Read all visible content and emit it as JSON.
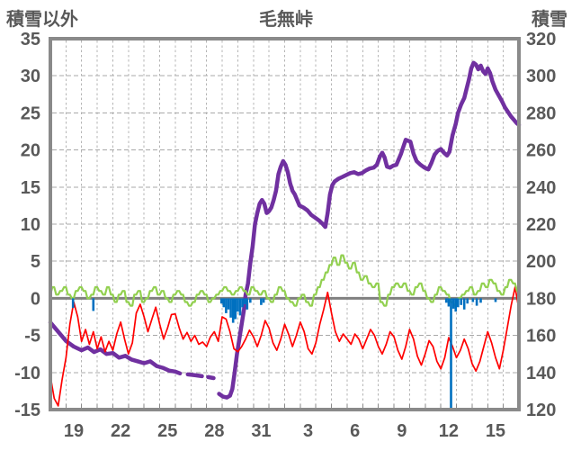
{
  "header": {
    "left_label": "積雪以外",
    "title": "毛無峠",
    "right_label": "積雪"
  },
  "colors": {
    "text": "#595959",
    "plot_border": "#8a8a8a",
    "zero_line": "#808080",
    "h_grid": "#a9a9a9",
    "v_grid": "#b5b5b5",
    "purple": "#7030A0",
    "red": "#FF0000",
    "green": "#92D050",
    "blue": "#0070C0"
  },
  "chart_data": {
    "type": "line",
    "title": "毛無峠",
    "left_axis": {
      "label": "積雪以外",
      "range": [
        -15,
        35
      ],
      "tick_step": 5,
      "ticks": [
        35,
        30,
        25,
        20,
        15,
        10,
        5,
        0,
        -5,
        -10,
        -15
      ]
    },
    "right_axis": {
      "label": "積雪",
      "range": [
        120,
        320
      ],
      "tick_step": 20,
      "ticks": [
        320,
        300,
        280,
        260,
        240,
        220,
        200,
        180,
        160,
        140,
        120
      ]
    },
    "x_axis": {
      "labels": [
        "19",
        "22",
        "25",
        "28",
        "31",
        "3",
        "6",
        "9",
        "12",
        "15"
      ],
      "label_positions_days": [
        1.5,
        4.5,
        7.5,
        10.5,
        13.5,
        16.5,
        19.5,
        22.5,
        25.5,
        28.5
      ],
      "range_days": [
        0,
        30
      ],
      "minor_gridline_every_days": 1
    },
    "grid": {
      "horizontal_major": true,
      "vertical_daily_dashed": true,
      "zero_line_solid": true
    },
    "legend_position": "none",
    "series": [
      {
        "name": "snow-depth-purple",
        "axis": "right",
        "color": "#7030A0",
        "draw": "line",
        "line_width": 4.5,
        "segments": [
          [
            [
              0,
              167
            ],
            [
              0.5,
              162
            ],
            [
              1,
              157
            ],
            [
              1.5,
              154
            ],
            [
              2,
              152
            ],
            [
              2.4,
              153.5
            ],
            [
              2.8,
              151
            ],
            [
              3.2,
              152.5
            ],
            [
              3.6,
              150
            ],
            [
              4,
              150.5
            ],
            [
              4.4,
              148
            ],
            [
              4.8,
              149
            ],
            [
              5.2,
              147
            ],
            [
              5.6,
              146
            ],
            [
              6,
              145
            ],
            [
              6.4,
              146
            ],
            [
              6.8,
              143.5
            ],
            [
              7.2,
              142.5
            ],
            [
              7.6,
              141
            ],
            [
              8,
              140.5
            ],
            [
              8.3,
              139.5
            ]
          ],
          [
            [
              8.8,
              139
            ],
            [
              9.3,
              138.5
            ],
            [
              9.7,
              138
            ]
          ],
          [
            [
              10.1,
              137.5
            ],
            [
              10.45,
              137
            ]
          ],
          [
            [
              10.8,
              128.5
            ],
            [
              11.05,
              127
            ],
            [
              11.3,
              126.5
            ],
            [
              11.5,
              127.5
            ],
            [
              11.65,
              131
            ],
            [
              11.8,
              140
            ],
            [
              11.95,
              150
            ],
            [
              12.1,
              158
            ],
            [
              12.25,
              166
            ],
            [
              12.4,
              174
            ],
            [
              12.5,
              182
            ],
            [
              12.65,
              188
            ],
            [
              12.8,
              199
            ],
            [
              12.95,
              208
            ],
            [
              13.1,
              220
            ],
            [
              13.25,
              226
            ],
            [
              13.4,
              231
            ],
            [
              13.55,
              233
            ],
            [
              13.7,
              231
            ],
            [
              13.85,
              226
            ],
            [
              14,
              227
            ],
            [
              14.15,
              229
            ],
            [
              14.3,
              233
            ],
            [
              14.45,
              238
            ],
            [
              14.6,
              247
            ],
            [
              14.75,
              251
            ],
            [
              14.9,
              254
            ],
            [
              15.05,
              252
            ],
            [
              15.2,
              248
            ],
            [
              15.35,
              242
            ],
            [
              15.5,
              238
            ],
            [
              15.65,
              236
            ],
            [
              15.8,
              233
            ],
            [
              15.95,
              230
            ],
            [
              16.2,
              229
            ],
            [
              16.45,
              227.5
            ],
            [
              16.7,
              225
            ],
            [
              16.95,
              223.5
            ],
            [
              17.2,
              222
            ],
            [
              17.45,
              220
            ],
            [
              17.6,
              218.5
            ],
            [
              17.75,
              226
            ],
            [
              17.9,
              236
            ],
            [
              18.05,
              241
            ],
            [
              18.2,
              243
            ],
            [
              18.45,
              244.5
            ],
            [
              18.7,
              245.5
            ],
            [
              18.95,
              246.5
            ],
            [
              19.2,
              247.5
            ],
            [
              19.45,
              248
            ],
            [
              19.7,
              247
            ],
            [
              19.95,
              247.5
            ],
            [
              20.2,
              249
            ],
            [
              20.45,
              250
            ],
            [
              20.7,
              250.5
            ],
            [
              20.9,
              252
            ],
            [
              21.1,
              256.5
            ],
            [
              21.25,
              258.5
            ],
            [
              21.4,
              256
            ],
            [
              21.55,
              251
            ],
            [
              21.75,
              250.5
            ],
            [
              21.95,
              251.5
            ],
            [
              22.15,
              252
            ],
            [
              22.45,
              258
            ],
            [
              22.75,
              265.5
            ],
            [
              23.05,
              264.5
            ],
            [
              23.25,
              258
            ],
            [
              23.45,
              254
            ],
            [
              23.7,
              252
            ],
            [
              23.95,
              250.5
            ],
            [
              24.2,
              249.5
            ],
            [
              24.4,
              253
            ],
            [
              24.6,
              257.5
            ],
            [
              24.8,
              259.5
            ],
            [
              25,
              260.5
            ],
            [
              25.2,
              258.5
            ],
            [
              25.4,
              257
            ],
            [
              25.55,
              259
            ],
            [
              25.75,
              268
            ],
            [
              25.95,
              274
            ],
            [
              26.1,
              280
            ],
            [
              26.3,
              284.5
            ],
            [
              26.5,
              288
            ],
            [
              26.65,
              293
            ],
            [
              26.8,
              298
            ],
            [
              26.95,
              304
            ],
            [
              27.1,
              307
            ],
            [
              27.25,
              306
            ],
            [
              27.4,
              303.5
            ],
            [
              27.55,
              305.5
            ],
            [
              27.7,
              302.5
            ],
            [
              27.85,
              301
            ],
            [
              28,
              304
            ],
            [
              28.15,
              301.5
            ],
            [
              28.3,
              297
            ],
            [
              28.5,
              292.5
            ],
            [
              28.7,
              289.5
            ],
            [
              28.9,
              286.5
            ],
            [
              29.1,
              283
            ],
            [
              29.3,
              280.5
            ],
            [
              29.5,
              278
            ],
            [
              29.7,
              276
            ],
            [
              29.85,
              274.5
            ],
            [
              30,
              273.5
            ]
          ]
        ]
      },
      {
        "name": "red-series",
        "axis": "left",
        "color": "#FF0000",
        "draw": "line",
        "line_width": 1.7,
        "t_start": 0,
        "t_step": 0.25,
        "values": [
          -10.5,
          -13.5,
          -14.5,
          -11,
          -8,
          -3.5,
          -0.5,
          -2.5,
          -5.8,
          -4.2,
          -6.2,
          -4.5,
          -6.8,
          -5.2,
          -7.2,
          -5.8,
          -7,
          -4.8,
          -3.2,
          -5.5,
          -7.5,
          -6,
          -2,
          -0.8,
          -2.5,
          -4.5,
          -2.8,
          -1.2,
          -3.5,
          -5.5,
          -4,
          -2.2,
          -2.1,
          -4,
          -5.5,
          -4.6,
          -5.8,
          -5,
          -6.2,
          -5.9,
          -6.5,
          -5.2,
          -4.5,
          -5.8,
          -2.5,
          -2.8,
          -4.5,
          -6.8,
          -7.2,
          -6.5,
          -5.5,
          -4.3,
          -5.2,
          -6.5,
          -5,
          -3,
          -4,
          -6,
          -7,
          -5.5,
          -3.5,
          -4.8,
          -6.5,
          -5,
          -3.2,
          -4.5,
          -6.8,
          -7.5,
          -6,
          -3.5,
          -1.5,
          0.8,
          -2,
          -4.5,
          -5.8,
          -4.8,
          -5.5,
          -6.2,
          -4.8,
          -5.5,
          -6.8,
          -5.5,
          -4.2,
          -5,
          -6.5,
          -7.5,
          -6.2,
          -4.5,
          -5.2,
          -7,
          -8.2,
          -6.5,
          -4.2,
          -5.5,
          -7.8,
          -9,
          -7.5,
          -5.7,
          -6.5,
          -8.5,
          -9.5,
          -8,
          -5.3,
          -6.5,
          -8,
          -7,
          -5.5,
          -6.8,
          -8.8,
          -9.8,
          -8.5,
          -6.5,
          -4.5,
          -6,
          -8,
          -9.5,
          -7,
          -4,
          -1,
          1.5,
          -1.5
        ]
      },
      {
        "name": "green-series",
        "axis": "left",
        "color": "#92D050",
        "draw": "step",
        "line_width": 2.2,
        "t_start": 0,
        "t_step": 0.25,
        "values": [
          0.5,
          1.5,
          0.5,
          1,
          1.5,
          0.5,
          0,
          1,
          1.5,
          1,
          0,
          0.5,
          1.5,
          1,
          0.5,
          1.5,
          0.5,
          -0.5,
          0.5,
          1,
          -0.5,
          -1,
          0.5,
          1,
          -0.5,
          0,
          1,
          1.5,
          0.5,
          1,
          0,
          -0.5,
          0.5,
          1,
          0.5,
          -0.5,
          -1,
          -0.5,
          0.5,
          1,
          0.5,
          -0.5,
          0,
          0.5,
          1,
          1.5,
          1,
          0.5,
          1,
          1.5,
          1,
          0.5,
          1.5,
          1,
          0.5,
          1,
          0,
          -0.5,
          0.5,
          1.5,
          1,
          0,
          -0.5,
          -1,
          0,
          0.5,
          -0.5,
          -1,
          0.5,
          1.5,
          2.5,
          3.5,
          4.5,
          5.5,
          4.5,
          5.8,
          4.8,
          4,
          4.8,
          3.5,
          2.5,
          3,
          2,
          1.5,
          2,
          -0.5,
          -1,
          0.5,
          1.5,
          2,
          1.5,
          2,
          1,
          0.5,
          1.5,
          2,
          1,
          0,
          -0.5,
          0.5,
          1.5,
          1,
          0.5,
          -0.5,
          -1,
          0,
          0.5,
          1,
          1.5,
          0.5,
          1,
          2,
          1.5,
          2.5,
          2,
          1,
          0.5,
          1.5,
          2.5,
          2,
          1
        ]
      },
      {
        "name": "blue-bars",
        "axis": "left",
        "color": "#0070C0",
        "draw": "bar",
        "bar_width": 2.6,
        "points": [
          [
            1.45,
            -1.3
          ],
          [
            2.75,
            -1.7
          ],
          [
            10.95,
            -0.7
          ],
          [
            11.1,
            -1.2
          ],
          [
            11.25,
            -2
          ],
          [
            11.4,
            -1.5
          ],
          [
            11.55,
            -2.6
          ],
          [
            11.7,
            -3.3
          ],
          [
            11.85,
            -2.8
          ],
          [
            12,
            -1.8
          ],
          [
            12.15,
            -2.3
          ],
          [
            12.3,
            -1.2
          ],
          [
            12.45,
            -0.8
          ],
          [
            12.6,
            -1.5
          ],
          [
            12.8,
            -0.6
          ],
          [
            13.5,
            -0.9
          ],
          [
            13.65,
            -0.6
          ],
          [
            25.35,
            -0.6
          ],
          [
            25.5,
            -1.1
          ],
          [
            25.65,
            -16
          ],
          [
            25.8,
            -1.4
          ],
          [
            25.95,
            -1.8
          ],
          [
            26.1,
            -1.2
          ],
          [
            26.3,
            -0.9
          ],
          [
            26.5,
            -1.5
          ],
          [
            26.7,
            -0.7
          ],
          [
            27.05,
            -0.5
          ],
          [
            27.3,
            -1
          ],
          [
            27.55,
            -0.6
          ],
          [
            28.5,
            -0.5
          ]
        ]
      }
    ]
  }
}
